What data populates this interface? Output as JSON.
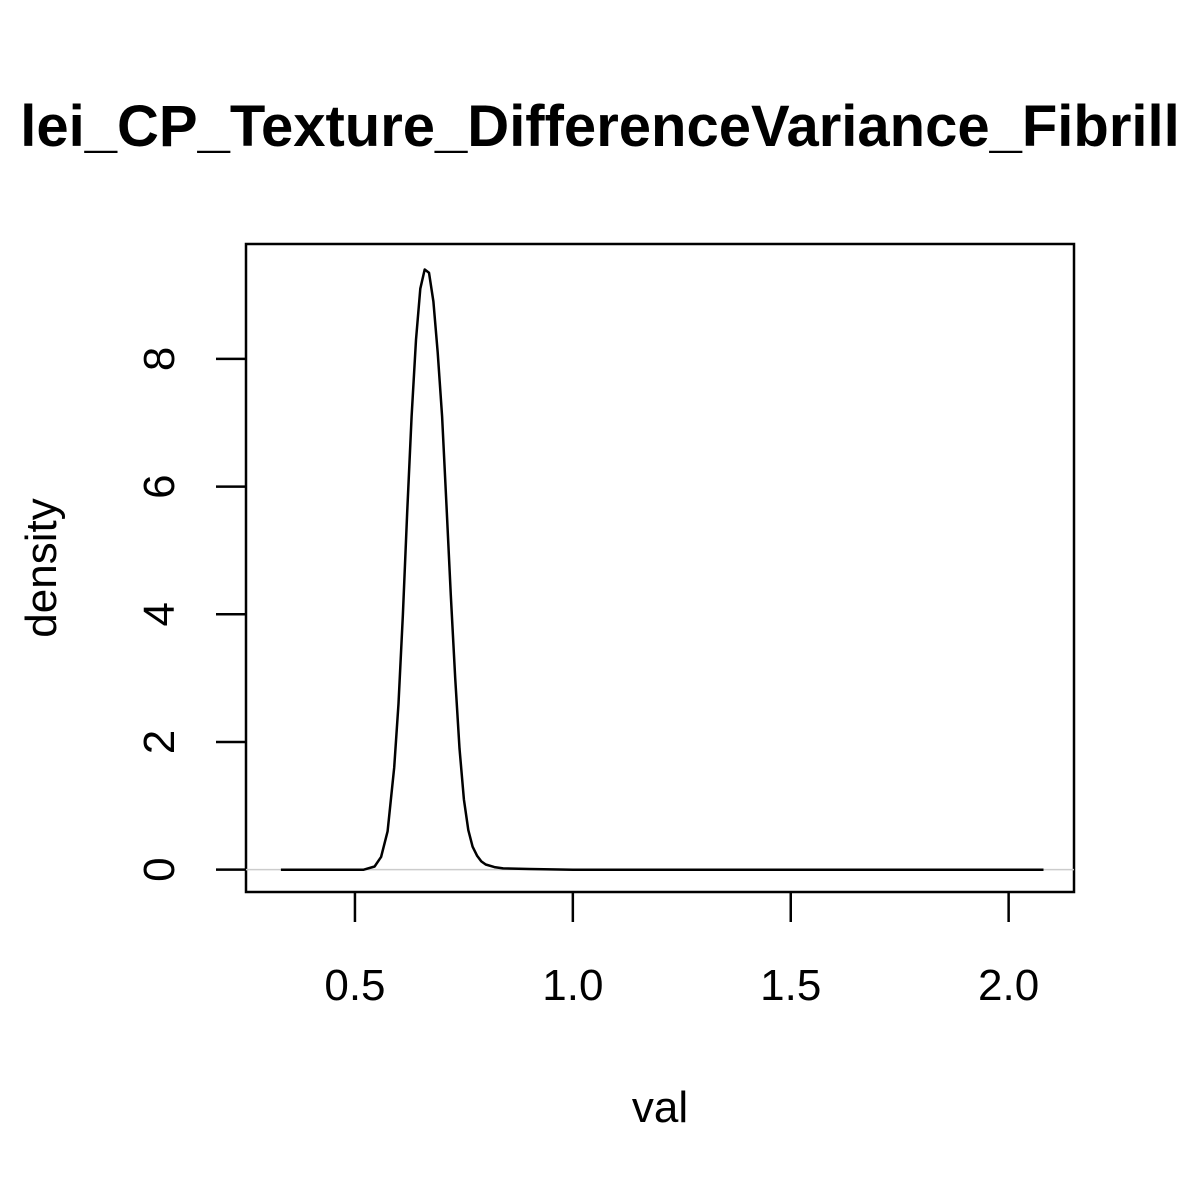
{
  "chart_data": {
    "type": "line",
    "title": "lei_CP_Texture_DifferenceVariance_Fibrill",
    "xlabel": "val",
    "ylabel": "density",
    "xlim": [
      0.25,
      2.15
    ],
    "ylim": [
      -0.35,
      9.8
    ],
    "x_ticks": [
      0.5,
      1.0,
      1.5,
      2.0
    ],
    "x_tick_labels": [
      "0.5",
      "1.0",
      "1.5",
      "2.0"
    ],
    "y_ticks": [
      0,
      2,
      4,
      6,
      8
    ],
    "y_tick_labels": [
      "0",
      "2",
      "4",
      "6",
      "8"
    ],
    "grid": false,
    "legend": "none",
    "colors": {
      "line": "#000000",
      "baseline": "#cccccc",
      "frame": "#000000"
    },
    "baseline_y": 0,
    "series": [
      {
        "x": [
          0.33,
          0.4,
          0.47,
          0.52,
          0.545,
          0.56,
          0.575,
          0.59,
          0.6,
          0.61,
          0.62,
          0.63,
          0.64,
          0.65,
          0.66,
          0.67,
          0.68,
          0.69,
          0.7,
          0.71,
          0.72,
          0.73,
          0.74,
          0.75,
          0.76,
          0.77,
          0.78,
          0.79,
          0.8,
          0.82,
          0.84,
          0.9,
          1.0,
          1.2,
          1.4,
          1.6,
          1.8,
          2.0,
          2.08
        ],
        "y": [
          0.0,
          0.0,
          0.0,
          0.0,
          0.05,
          0.2,
          0.6,
          1.6,
          2.6,
          4.0,
          5.6,
          7.1,
          8.3,
          9.1,
          9.4,
          9.35,
          8.9,
          8.1,
          7.1,
          5.7,
          4.3,
          3.0,
          1.9,
          1.1,
          0.62,
          0.36,
          0.22,
          0.13,
          0.08,
          0.04,
          0.02,
          0.01,
          0.0,
          0.0,
          0.0,
          0.0,
          0.0,
          0.0,
          0.0
        ]
      }
    ]
  }
}
